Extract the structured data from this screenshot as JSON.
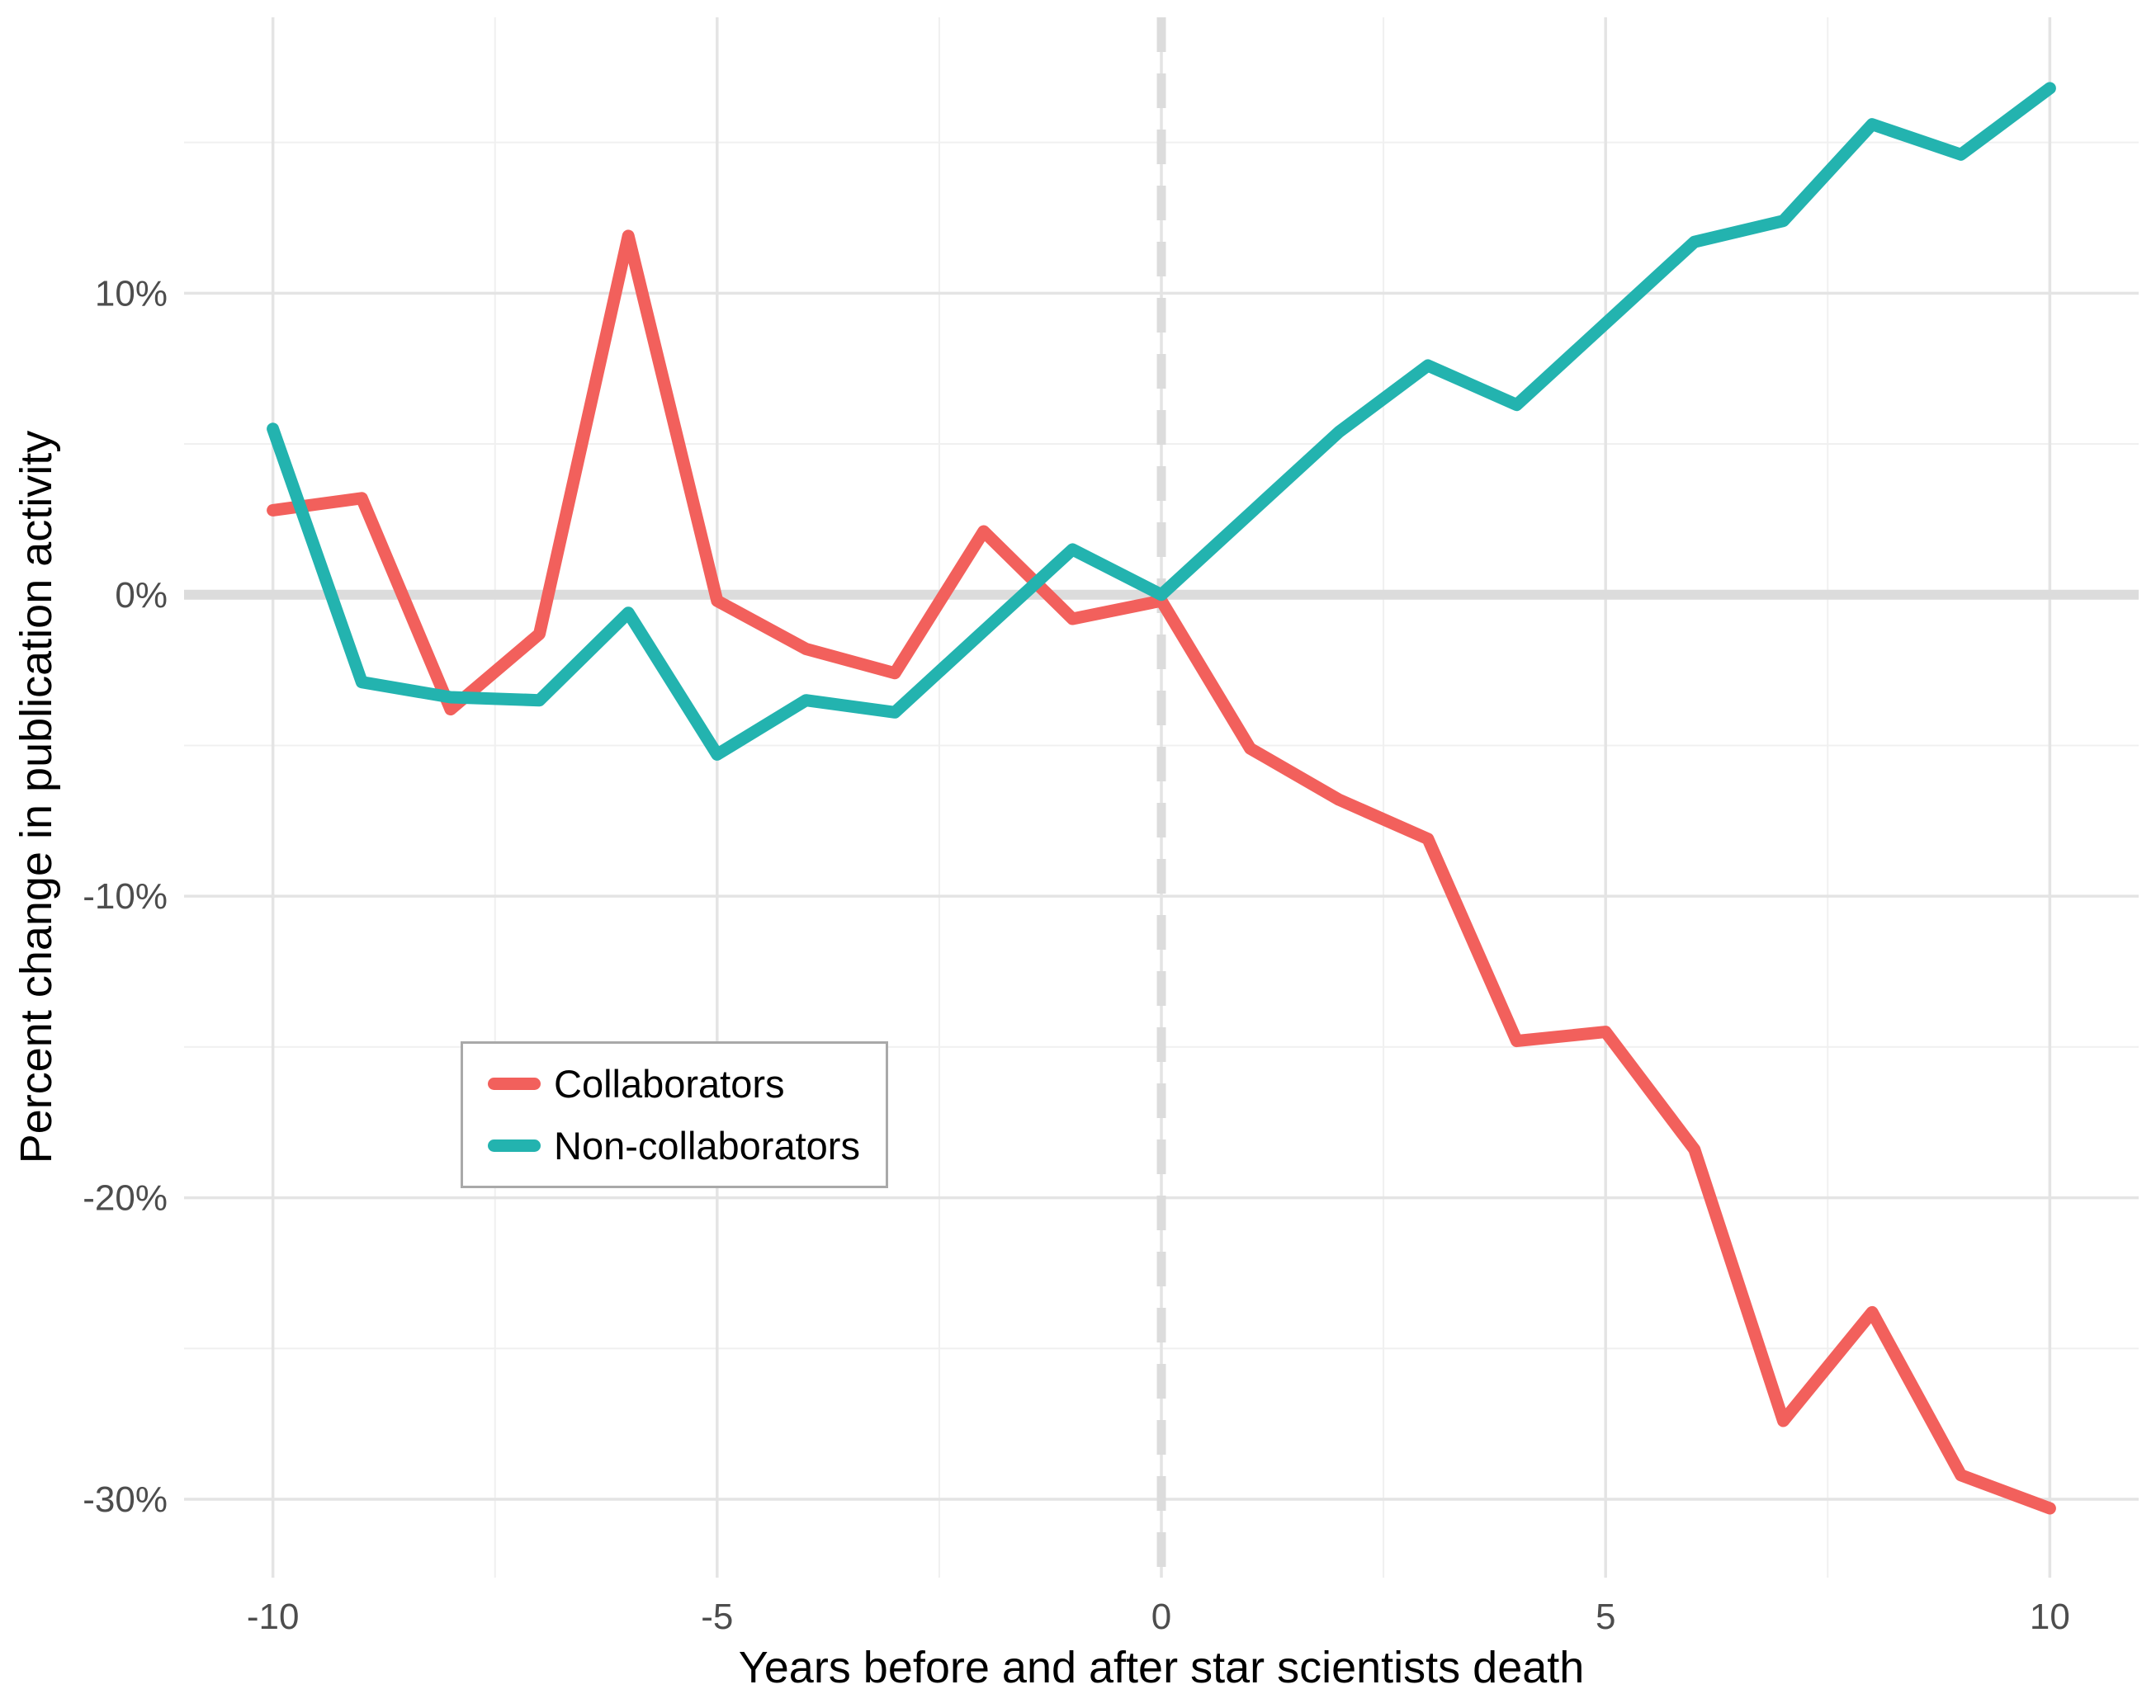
{
  "chart_data": {
    "type": "line",
    "title": "",
    "xlabel": "Years before and after star scientists death",
    "ylabel": "Percent change in publication activity",
    "x": [
      -10,
      -9,
      -8,
      -7,
      -6,
      -5,
      -4,
      -3,
      -2,
      -1,
      0,
      1,
      2,
      3,
      4,
      5,
      6,
      7,
      8,
      9,
      10
    ],
    "series": [
      {
        "name": "Collaborators",
        "color": "#F2605C",
        "values": [
          2.8,
          3.2,
          -3.8,
          -1.3,
          11.9,
          -0.2,
          -1.8,
          -2.6,
          2.1,
          -0.8,
          -0.2,
          -5.1,
          -6.8,
          -8.1,
          -14.8,
          -14.5,
          -18.4,
          -27.4,
          -23.8,
          -29.2,
          -30.3
        ]
      },
      {
        "name": "Non-collaborators",
        "color": "#23B3AF",
        "values": [
          5.5,
          -2.9,
          -3.4,
          -3.5,
          -0.6,
          -5.3,
          -3.5,
          -3.9,
          -1.2,
          1.5,
          0.0,
          2.7,
          5.4,
          7.6,
          6.3,
          9.0,
          11.7,
          12.4,
          15.6,
          14.6,
          16.8
        ]
      }
    ],
    "xlim": [
      -11,
      11
    ],
    "ylim": [
      -32.6,
      19.15
    ],
    "grid": true,
    "axes": {
      "x": {
        "ticks": [
          {
            "v": -10,
            "label": "-10"
          },
          {
            "v": -5,
            "label": "-5"
          },
          {
            "v": 0,
            "label": "0"
          },
          {
            "v": 5,
            "label": "5"
          },
          {
            "v": 10,
            "label": "10"
          }
        ],
        "minor": [
          -7.5,
          -2.5,
          2.5,
          7.5
        ]
      },
      "y": {
        "ticks": [
          {
            "v": 10,
            "label": "10%"
          },
          {
            "v": 0,
            "label": "0%"
          },
          {
            "v": -10,
            "label": "-10%"
          },
          {
            "v": -20,
            "label": "-20%"
          },
          {
            "v": -30,
            "label": "-30%"
          }
        ],
        "minor": [
          15,
          5,
          -5,
          -15,
          -25
        ]
      }
    },
    "annotations": {
      "zero_hline": {
        "y": 0,
        "color": "#DCDCDC"
      },
      "event_vline": {
        "x": 0,
        "color": "#DCDCDC",
        "dashed": true
      }
    },
    "style": {
      "grid_major_color": "#E4E4E4",
      "grid_minor_color": "#F0F0F0",
      "tick_label_color": "#4D4D4D",
      "background": "#FFFFFF"
    },
    "legend": {
      "position": "inside-left-middle",
      "border_color": "#A9A9A9",
      "background": "#FFFFFF"
    }
  }
}
